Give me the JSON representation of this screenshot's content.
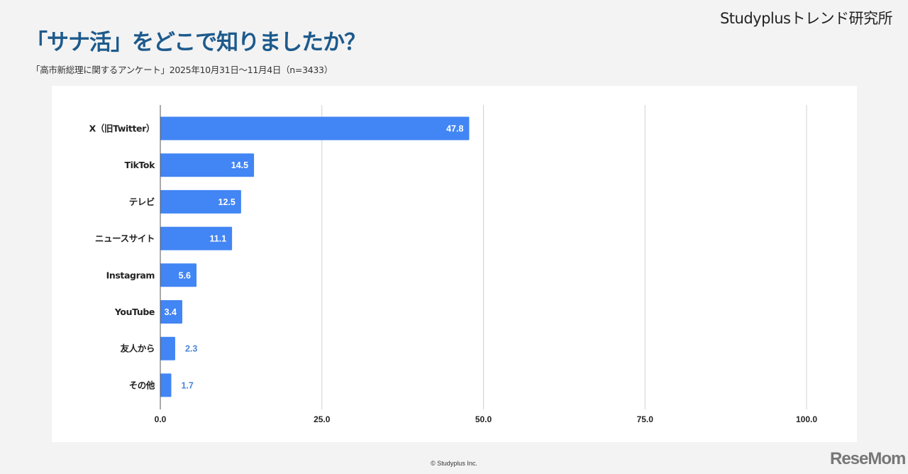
{
  "header": {
    "brand": "Studyplusトレンド研究所",
    "title": "「サナ活」をどこで知りましたか？",
    "subtitle": "「高市新総理に関するアンケート」2025年10月31日～11月4日（n=3433）"
  },
  "footer": {
    "copyright": "© Studyplus Inc.",
    "logo": "ReseMom"
  },
  "chart_data": {
    "type": "bar",
    "orientation": "horizontal",
    "categories": [
      "X（旧Twitter）",
      "TikTok",
      "テレビ",
      "ニュースサイト",
      "Instagram",
      "YouTube",
      "友人から",
      "その他"
    ],
    "values": [
      47.8,
      14.5,
      12.5,
      11.1,
      5.6,
      3.4,
      2.3,
      1.7
    ],
    "data_labels": [
      "47.8",
      "14.5",
      "12.5",
      "11.1",
      "5.6",
      "3.4",
      "2.3",
      "1.7"
    ],
    "xlim": [
      0,
      100
    ],
    "ticks": [
      "0.0",
      "25.0",
      "50.0",
      "75.0",
      "100.0"
    ],
    "tick_values": [
      0,
      25,
      50,
      75,
      100
    ],
    "grid": true,
    "bar_color": "#4285f4",
    "outside_label_color": "#4a86d8"
  }
}
